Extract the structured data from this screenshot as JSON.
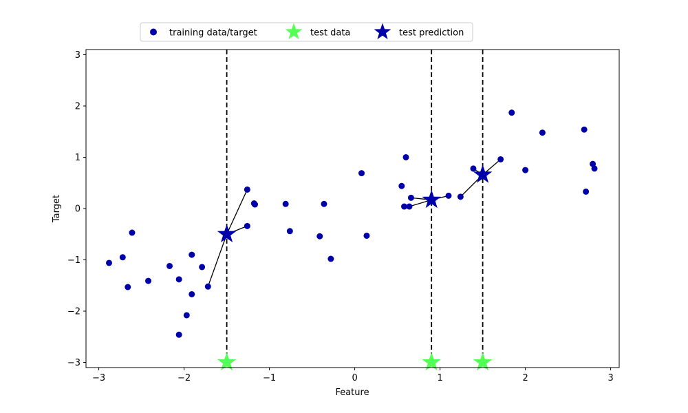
{
  "chart_data": {
    "type": "scatter",
    "title": "",
    "xlabel": "Feature",
    "ylabel": "Target",
    "xlim": [
      -3.15,
      3.1
    ],
    "ylim": [
      -3.1,
      3.1
    ],
    "xticks": [
      {
        "value": -3,
        "label": "−3"
      },
      {
        "value": -2,
        "label": "−2"
      },
      {
        "value": -1,
        "label": "−1"
      },
      {
        "value": 0,
        "label": "0"
      },
      {
        "value": 1,
        "label": "1"
      },
      {
        "value": 2,
        "label": "2"
      },
      {
        "value": 3,
        "label": "3"
      }
    ],
    "yticks": [
      {
        "value": -3,
        "label": "−3"
      },
      {
        "value": -2,
        "label": "−2"
      },
      {
        "value": -1,
        "label": "−1"
      },
      {
        "value": 0,
        "label": "0"
      },
      {
        "value": 1,
        "label": "1"
      },
      {
        "value": 2,
        "label": "2"
      },
      {
        "value": 3,
        "label": "3"
      }
    ],
    "grid": false,
    "legend_placement": "top-center",
    "colors": {
      "training": "#0000aa",
      "test": "#55ff55",
      "prediction": "#0000aa",
      "vline": "#000000",
      "link": "#000000"
    },
    "series": [
      {
        "name": "training data/target",
        "marker": "circle",
        "points": [
          [
            -2.88,
            -1.06
          ],
          [
            -2.72,
            -0.95
          ],
          [
            -2.66,
            -1.53
          ],
          [
            -2.61,
            -0.47
          ],
          [
            -2.42,
            -1.41
          ],
          [
            -2.17,
            -1.12
          ],
          [
            -2.06,
            -1.38
          ],
          [
            -2.06,
            -2.46
          ],
          [
            -1.97,
            -2.08
          ],
          [
            -1.91,
            -0.9
          ],
          [
            -1.91,
            -1.67
          ],
          [
            -1.79,
            -1.14
          ],
          [
            -1.72,
            -1.52
          ],
          [
            -1.26,
            0.37
          ],
          [
            -1.26,
            -0.34
          ],
          [
            -1.18,
            0.1
          ],
          [
            -1.17,
            0.08
          ],
          [
            -0.81,
            0.09
          ],
          [
            -0.76,
            -0.44
          ],
          [
            -0.41,
            -0.54
          ],
          [
            -0.36,
            0.09
          ],
          [
            -0.28,
            -0.98
          ],
          [
            0.08,
            0.69
          ],
          [
            0.14,
            -0.53
          ],
          [
            0.55,
            0.44
          ],
          [
            0.58,
            0.04
          ],
          [
            0.6,
            1.0
          ],
          [
            0.64,
            0.04
          ],
          [
            0.66,
            0.21
          ],
          [
            1.1,
            0.25
          ],
          [
            1.24,
            0.23
          ],
          [
            1.39,
            0.78
          ],
          [
            1.71,
            0.96
          ],
          [
            1.84,
            1.87
          ],
          [
            2.0,
            0.75
          ],
          [
            2.2,
            1.48
          ],
          [
            2.69,
            1.54
          ],
          [
            2.71,
            0.33
          ],
          [
            2.79,
            0.87
          ],
          [
            2.81,
            0.78
          ]
        ]
      },
      {
        "name": "test data",
        "marker": "star",
        "points": [
          [
            -1.5,
            -3.0
          ],
          [
            0.9,
            -3.0
          ],
          [
            1.5,
            -3.0
          ]
        ]
      },
      {
        "name": "test prediction",
        "marker": "star",
        "points": [
          [
            -1.5,
            -0.5
          ],
          [
            0.9,
            0.17
          ],
          [
            1.5,
            0.66
          ]
        ]
      }
    ],
    "neighbor_links": [
      {
        "from": [
          -1.5,
          -0.5
        ],
        "to": [
          -1.26,
          0.37
        ]
      },
      {
        "from": [
          -1.5,
          -0.5
        ],
        "to": [
          -1.26,
          -0.34
        ]
      },
      {
        "from": [
          -1.5,
          -0.5
        ],
        "to": [
          -1.72,
          -1.52
        ]
      },
      {
        "from": [
          0.9,
          0.17
        ],
        "to": [
          0.66,
          0.21
        ]
      },
      {
        "from": [
          0.9,
          0.17
        ],
        "to": [
          0.64,
          0.04
        ]
      },
      {
        "from": [
          0.9,
          0.17
        ],
        "to": [
          1.1,
          0.25
        ]
      },
      {
        "from": [
          1.5,
          0.66
        ],
        "to": [
          1.24,
          0.23
        ]
      },
      {
        "from": [
          1.5,
          0.66
        ],
        "to": [
          1.39,
          0.78
        ]
      },
      {
        "from": [
          1.5,
          0.66
        ],
        "to": [
          1.71,
          0.96
        ]
      }
    ],
    "vlines_x": [
      -1.5,
      0.9,
      1.5
    ]
  }
}
